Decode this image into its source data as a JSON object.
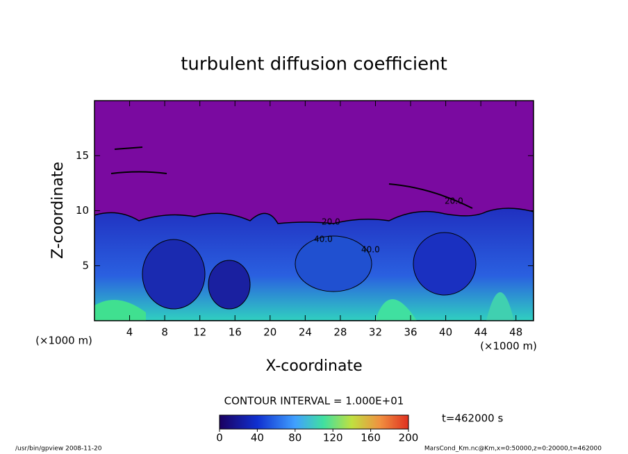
{
  "chart_data": {
    "type": "contour",
    "title": "turbulent diffusion coefficient",
    "x_label": "X-coordinate",
    "y_label": "Z-coordinate",
    "x_unit": "(×1000 m)",
    "y_unit": "(×1000 m)",
    "xlim": [
      0,
      50
    ],
    "xticks": [
      4,
      8,
      12,
      16,
      20,
      24,
      28,
      32,
      36,
      40,
      44,
      48
    ],
    "ylim": [
      0,
      20
    ],
    "yticks": [
      5,
      10,
      15
    ],
    "contour_interval": "CONTOUR INTERVAL = 1.000E+01",
    "time_label": "t=462000 s",
    "clim": [
      0,
      200
    ],
    "cticks": [
      0,
      40,
      80,
      120,
      160,
      200
    ],
    "annotations": [
      "20.0",
      "40.0",
      "40.0",
      "20.0"
    ],
    "footer_left": "/usr/bin/gpview   2008-11-20",
    "footer_right": "MarsCond_Km.nc@Km,x=0:50000,z=0:20000,t=462000"
  }
}
